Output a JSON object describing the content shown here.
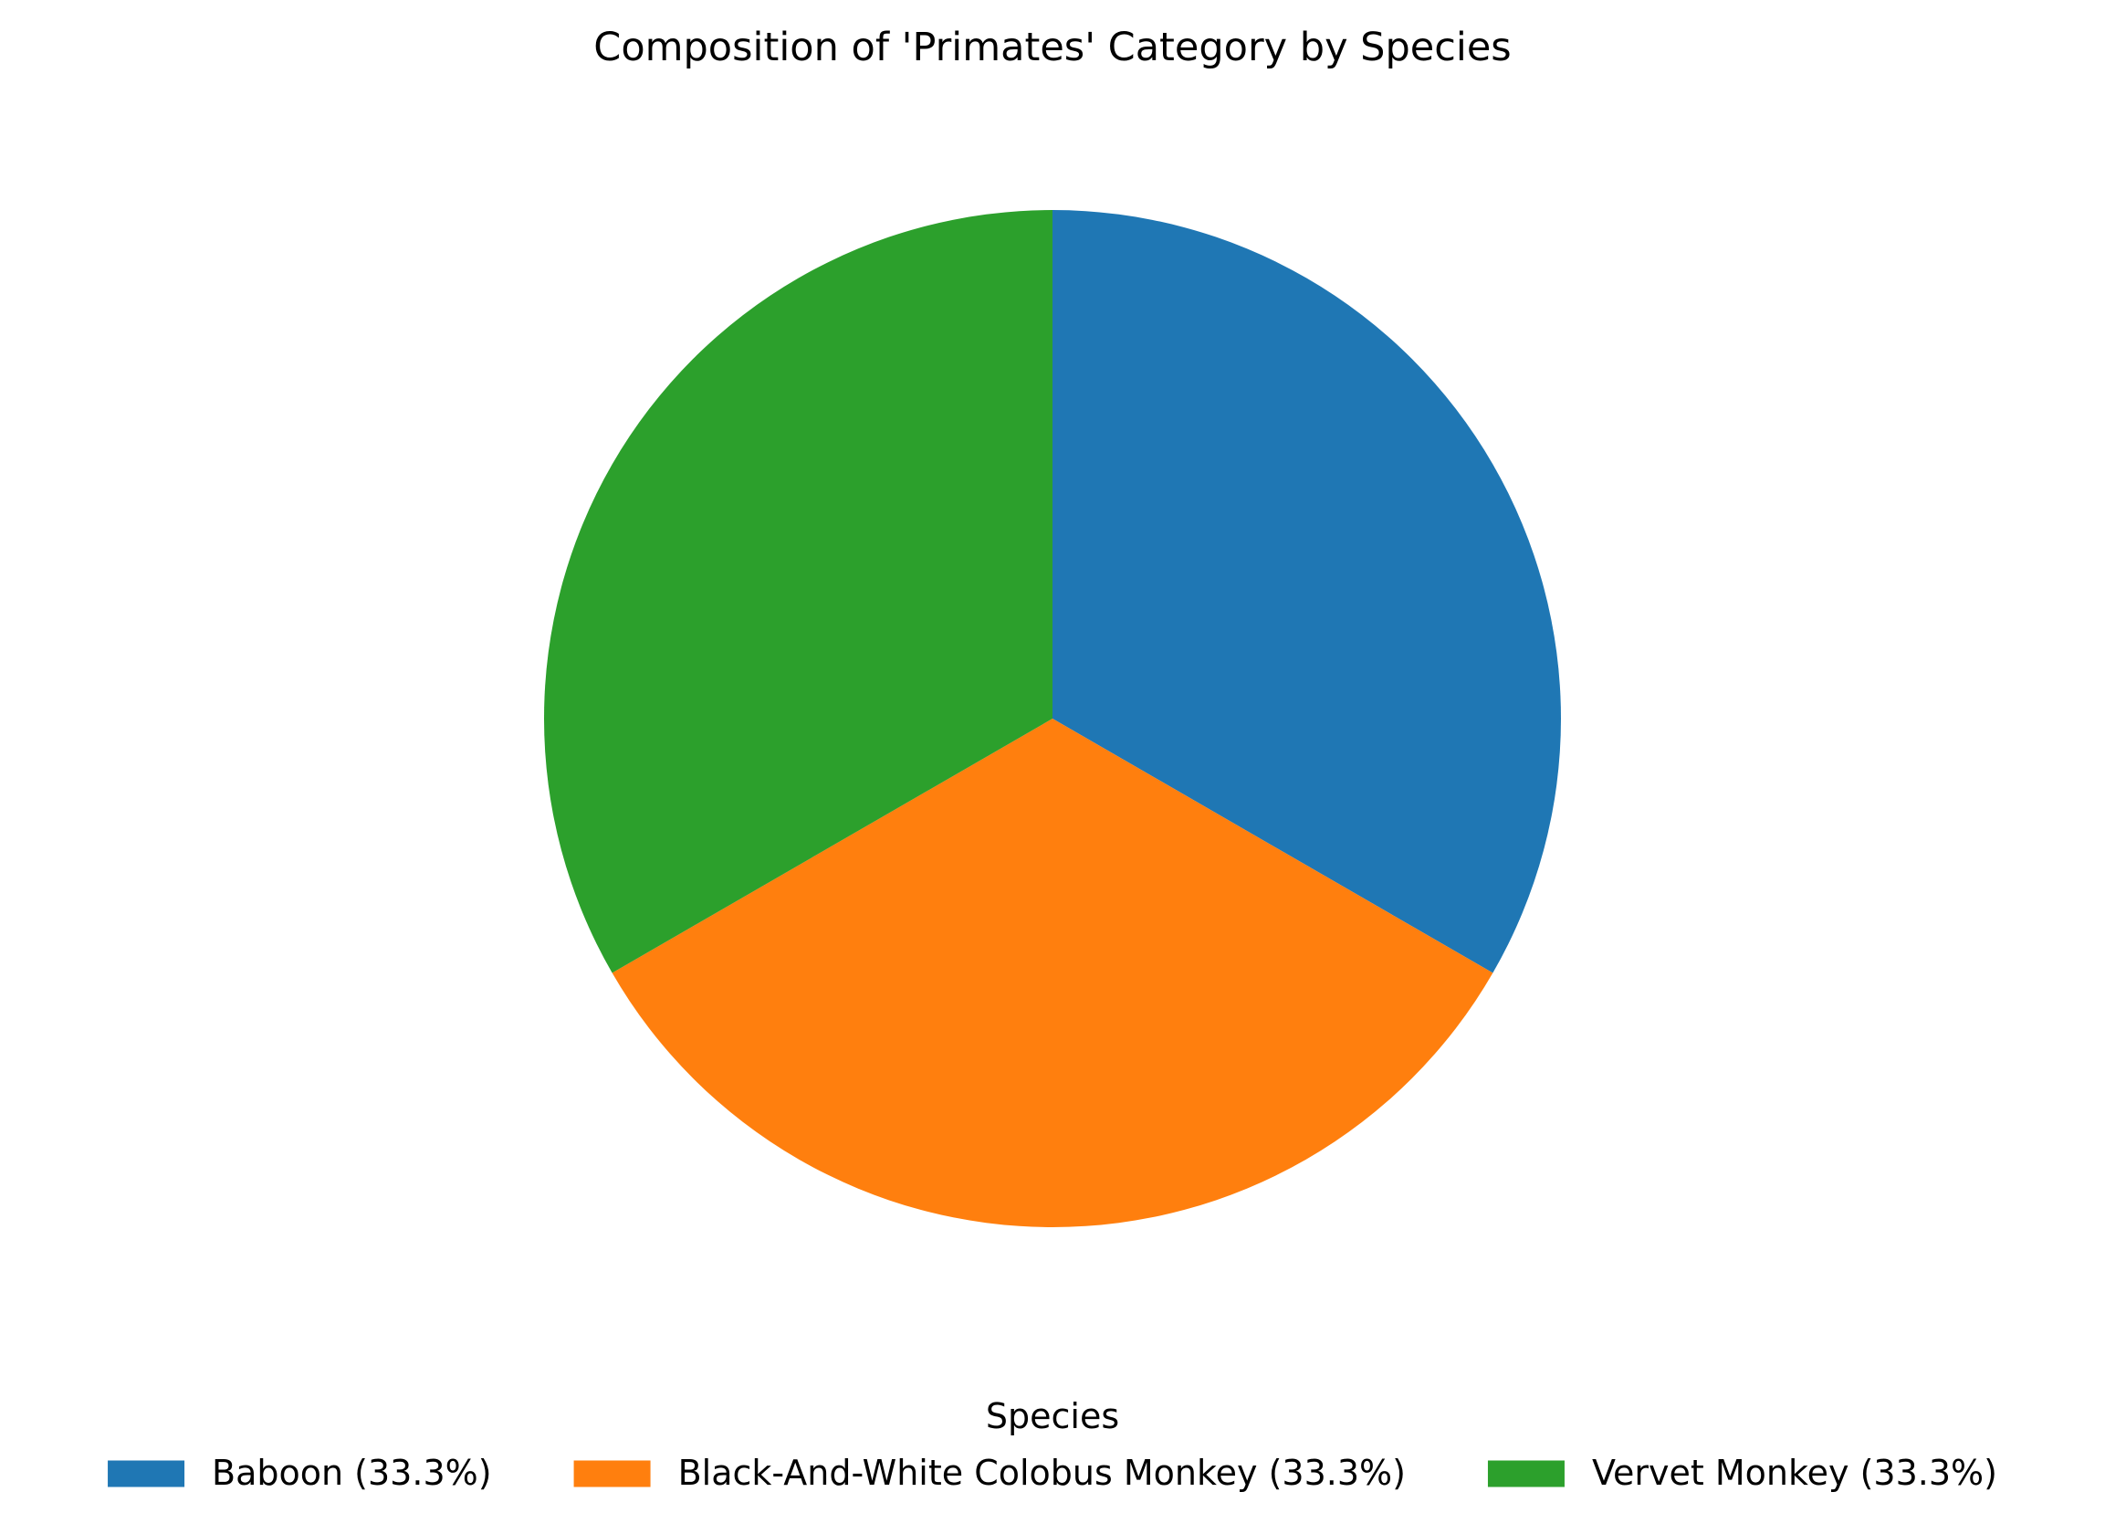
{
  "chart_data": {
    "type": "pie",
    "title": "Composition of 'Primates' Category by Species",
    "legend_title": "Species",
    "legend_placement": "bottom",
    "start_angle_deg": 90,
    "direction": "clockwise",
    "slices": [
      {
        "label": "Baboon (33.3%)",
        "name": "Baboon",
        "percent": 33.3,
        "value": 1,
        "color": "#1f77b4"
      },
      {
        "label": "Black-And-White Colobus Monkey (33.3%)",
        "name": "Black-And-White Colobus Monkey",
        "percent": 33.3,
        "value": 1,
        "color": "#ff7f0e"
      },
      {
        "label": "Vervet Monkey (33.3%)",
        "name": "Vervet Monkey",
        "percent": 33.3,
        "value": 1,
        "color": "#2ca02c"
      }
    ]
  }
}
